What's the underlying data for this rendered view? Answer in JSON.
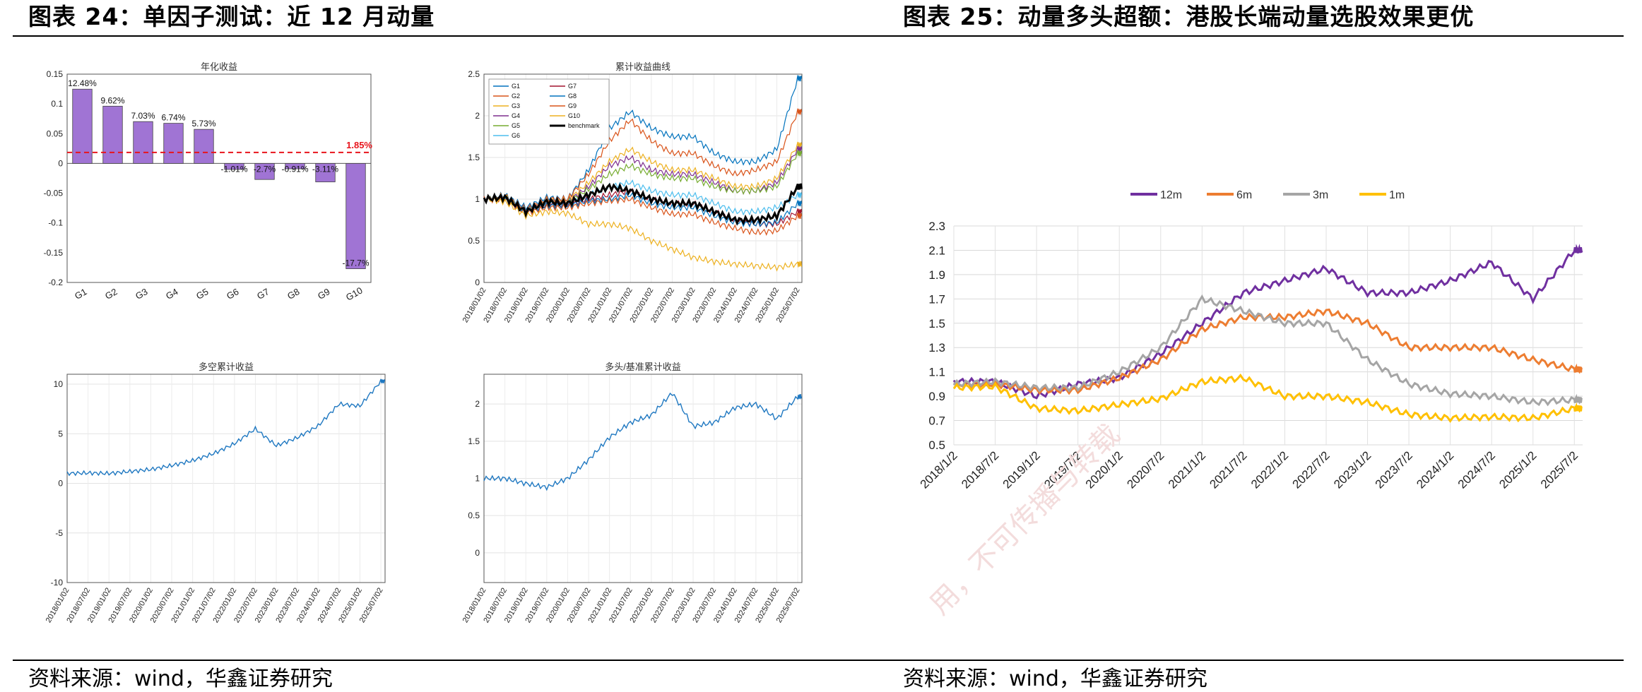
{
  "figure_left": {
    "heading": "图表 24：单因子测试：近 12 月动量",
    "source": "资料来源：wind，华鑫证券研究"
  },
  "figure_right": {
    "heading": "图表 25：动量多头超额：港股长端动量选股效果更优",
    "source": "资料来源：wind，华鑫证券研究"
  },
  "watermark": "用，不可传播与转载",
  "colors": {
    "bar": "#a074d4",
    "refline": "#e8141c",
    "matlab_blue": "#1f78c1",
    "purple": "#7030a0",
    "orange": "#ed7d31",
    "gray": "#a5a5a5",
    "yellow": "#ffc000"
  },
  "chart_data": [
    {
      "type": "bar",
      "title": "年化收益",
      "categories": [
        "G1",
        "G2",
        "G3",
        "G4",
        "G5",
        "G6",
        "G7",
        "G8",
        "G9",
        "G10"
      ],
      "values": [
        0.1248,
        0.0962,
        0.0703,
        0.0674,
        0.0573,
        -0.0101,
        -0.027,
        -0.0091,
        -0.0311,
        -0.177
      ],
      "labels": [
        "12.48%",
        "9.62%",
        "7.03%",
        "6.74%",
        "5.73%",
        "-1.01%",
        "-2.7%",
        "-0.91%",
        "-3.11%",
        "-17.7%"
      ],
      "ylim": [
        -0.2,
        0.15
      ],
      "yticks": [
        "0.15",
        "0.1",
        "0.05",
        "0",
        "-0.05",
        "-0.1",
        "-0.15",
        "-0.2"
      ],
      "reference_value": 0.0185,
      "reference_label": "1.85%"
    },
    {
      "type": "line",
      "title": "累计收益曲线",
      "ylim": [
        0,
        2.5
      ],
      "yticks": [
        "2.5",
        "2",
        "1.5",
        "1",
        "0.5",
        "0"
      ],
      "xticks": [
        "2018/01/02",
        "2018/07/02",
        "2019/01/02",
        "2019/07/02",
        "2020/01/02",
        "2020/07/02",
        "2021/01/02",
        "2021/07/02",
        "2022/01/02",
        "2022/07/02",
        "2023/01/02",
        "2023/07/02",
        "2024/01/02",
        "2024/07/02",
        "2025/01/02",
        "2025/07/02"
      ],
      "x": [
        2018.0,
        2018.5,
        2019.0,
        2019.5,
        2020.0,
        2020.5,
        2021.0,
        2021.5,
        2022.0,
        2022.5,
        2023.0,
        2023.5,
        2024.0,
        2024.5,
        2025.0,
        2025.5
      ],
      "series": [
        {
          "name": "G1",
          "color": "#0072bd",
          "values": [
            1.0,
            1.05,
            0.9,
            1.02,
            1.0,
            1.35,
            1.85,
            2.05,
            1.85,
            1.75,
            1.75,
            1.55,
            1.45,
            1.45,
            1.6,
            2.45
          ]
        },
        {
          "name": "G2",
          "color": "#d95319",
          "values": [
            1.0,
            1.04,
            0.88,
            1.0,
            1.0,
            1.3,
            1.7,
            1.95,
            1.7,
            1.55,
            1.55,
            1.4,
            1.3,
            1.35,
            1.45,
            2.05
          ]
        },
        {
          "name": "G3",
          "color": "#edb120",
          "values": [
            1.0,
            1.03,
            0.87,
            0.98,
            0.98,
            1.2,
            1.45,
            1.6,
            1.45,
            1.35,
            1.35,
            1.25,
            1.15,
            1.15,
            1.25,
            1.65
          ]
        },
        {
          "name": "G4",
          "color": "#7e2f8e",
          "values": [
            1.0,
            1.02,
            0.87,
            0.97,
            0.97,
            1.15,
            1.4,
            1.5,
            1.35,
            1.3,
            1.3,
            1.2,
            1.1,
            1.1,
            1.2,
            1.6
          ]
        },
        {
          "name": "G5",
          "color": "#77ac30",
          "values": [
            1.0,
            1.02,
            0.86,
            0.96,
            0.96,
            1.12,
            1.3,
            1.4,
            1.3,
            1.25,
            1.25,
            1.15,
            1.1,
            1.1,
            1.15,
            1.55
          ]
        },
        {
          "name": "G6",
          "color": "#4dbeee",
          "values": [
            1.0,
            1.01,
            0.85,
            0.95,
            0.95,
            1.05,
            1.15,
            1.2,
            1.1,
            1.05,
            1.05,
            0.95,
            0.85,
            0.85,
            0.9,
            1.05
          ]
        },
        {
          "name": "G7",
          "color": "#a2142f",
          "values": [
            1.0,
            1.0,
            0.84,
            0.93,
            0.93,
            1.0,
            1.05,
            1.1,
            1.0,
            0.95,
            0.95,
            0.85,
            0.75,
            0.7,
            0.7,
            0.85
          ]
        },
        {
          "name": "G8",
          "color": "#0072bd",
          "values": [
            1.0,
            1.0,
            0.84,
            0.92,
            0.92,
            0.98,
            1.0,
            1.05,
            0.95,
            0.9,
            0.9,
            0.8,
            0.72,
            0.7,
            0.72,
            0.95
          ]
        },
        {
          "name": "G9",
          "color": "#d95319",
          "values": [
            1.0,
            0.99,
            0.83,
            0.9,
            0.9,
            0.95,
            0.98,
            1.0,
            0.9,
            0.82,
            0.82,
            0.72,
            0.65,
            0.6,
            0.62,
            0.8
          ]
        },
        {
          "name": "G10",
          "color": "#edb120",
          "values": [
            1.0,
            0.97,
            0.8,
            0.85,
            0.83,
            0.7,
            0.7,
            0.65,
            0.5,
            0.4,
            0.3,
            0.25,
            0.22,
            0.2,
            0.18,
            0.22
          ]
        },
        {
          "name": "benchmark",
          "color": "#000000",
          "values": [
            1.0,
            1.02,
            0.85,
            0.97,
            0.95,
            1.05,
            1.15,
            1.1,
            1.0,
            0.95,
            0.95,
            0.85,
            0.75,
            0.75,
            0.8,
            1.15
          ]
        }
      ]
    },
    {
      "type": "line",
      "title": "多空累计收益",
      "ylim": [
        -10,
        11
      ],
      "yticks": [
        "10",
        "5",
        "0",
        "-5",
        "-10"
      ],
      "xticks": [
        "2018/01/02",
        "2018/07/02",
        "2019/01/02",
        "2019/07/02",
        "2020/01/02",
        "2020/07/02",
        "2021/01/02",
        "2021/07/02",
        "2022/01/02",
        "2022/07/02",
        "2023/01/02",
        "2023/07/02",
        "2024/01/02",
        "2024/07/02",
        "2025/01/02",
        "2025/07/02"
      ],
      "x": [
        2018.0,
        2018.5,
        2019.0,
        2019.5,
        2020.0,
        2020.5,
        2021.0,
        2021.5,
        2022.0,
        2022.5,
        2023.0,
        2023.5,
        2024.0,
        2024.5,
        2025.0,
        2025.5
      ],
      "series": [
        {
          "name": "多空",
          "color": "#1f78c1",
          "values": [
            1.0,
            1.05,
            1.0,
            1.2,
            1.4,
            1.8,
            2.3,
            3.0,
            4.0,
            5.5,
            3.8,
            4.6,
            5.8,
            8.0,
            7.8,
            10.3
          ]
        }
      ]
    },
    {
      "type": "line",
      "title": "多头/基准累计收益",
      "ylim": [
        -0.4,
        2.4
      ],
      "yticks": [
        "2",
        "1.5",
        "1",
        "0.5",
        "0"
      ],
      "xticks": [
        "2018/01/02",
        "2018/07/02",
        "2019/01/02",
        "2019/07/02",
        "2020/01/02",
        "2020/07/02",
        "2021/01/02",
        "2021/07/02",
        "2022/01/02",
        "2022/07/02",
        "2023/01/02",
        "2023/07/02",
        "2024/01/02",
        "2024/07/02",
        "2025/01/02",
        "2025/07/02"
      ],
      "x": [
        2018.0,
        2018.5,
        2019.0,
        2019.5,
        2020.0,
        2020.5,
        2021.0,
        2021.5,
        2022.0,
        2022.5,
        2023.0,
        2023.5,
        2024.0,
        2024.5,
        2025.0,
        2025.5
      ],
      "series": [
        {
          "name": "多头/基准",
          "color": "#1f78c1",
          "values": [
            1.0,
            1.0,
            0.93,
            0.88,
            1.0,
            1.25,
            1.55,
            1.75,
            1.85,
            2.15,
            1.7,
            1.75,
            1.95,
            2.0,
            1.8,
            2.1
          ]
        }
      ]
    },
    {
      "type": "line",
      "title": "",
      "ylim": [
        0.5,
        2.3
      ],
      "yticks": [
        "2.3",
        "2.1",
        "1.9",
        "1.7",
        "1.5",
        "1.3",
        "1.1",
        "0.9",
        "0.7",
        "0.5"
      ],
      "xticks": [
        "2018/1/2",
        "2018/7/2",
        "2019/1/2",
        "2019/7/2",
        "2020/1/2",
        "2020/7/2",
        "2021/1/2",
        "2021/7/2",
        "2022/1/2",
        "2022/7/2",
        "2023/1/2",
        "2023/7/2",
        "2024/1/2",
        "2024/7/2",
        "2025/1/2",
        "2025/7/2"
      ],
      "x": [
        2018.0,
        2018.5,
        2019.0,
        2019.5,
        2020.0,
        2020.5,
        2021.0,
        2021.5,
        2022.0,
        2022.5,
        2023.0,
        2023.5,
        2024.0,
        2024.5,
        2025.0,
        2025.5
      ],
      "legend": "top-center",
      "series": [
        {
          "name": "12m",
          "color": "#7030a0",
          "values": [
            1.02,
            1.02,
            0.9,
            1.0,
            1.05,
            1.25,
            1.5,
            1.75,
            1.85,
            1.95,
            1.75,
            1.75,
            1.85,
            2.0,
            1.7,
            2.1
          ]
        },
        {
          "name": "6m",
          "color": "#ed7d31",
          "values": [
            1.0,
            1.0,
            0.95,
            0.95,
            1.05,
            1.2,
            1.45,
            1.55,
            1.55,
            1.6,
            1.5,
            1.3,
            1.3,
            1.3,
            1.2,
            1.12
          ]
        },
        {
          "name": "3m",
          "color": "#a5a5a5",
          "values": [
            1.0,
            1.02,
            0.97,
            0.97,
            1.1,
            1.3,
            1.7,
            1.6,
            1.5,
            1.5,
            1.2,
            1.0,
            0.92,
            0.9,
            0.85,
            0.87
          ]
        },
        {
          "name": "1m",
          "color": "#ffc000",
          "values": [
            0.97,
            0.98,
            0.8,
            0.78,
            0.83,
            0.88,
            1.02,
            1.05,
            0.9,
            0.9,
            0.85,
            0.75,
            0.72,
            0.73,
            0.72,
            0.8
          ]
        }
      ]
    }
  ]
}
